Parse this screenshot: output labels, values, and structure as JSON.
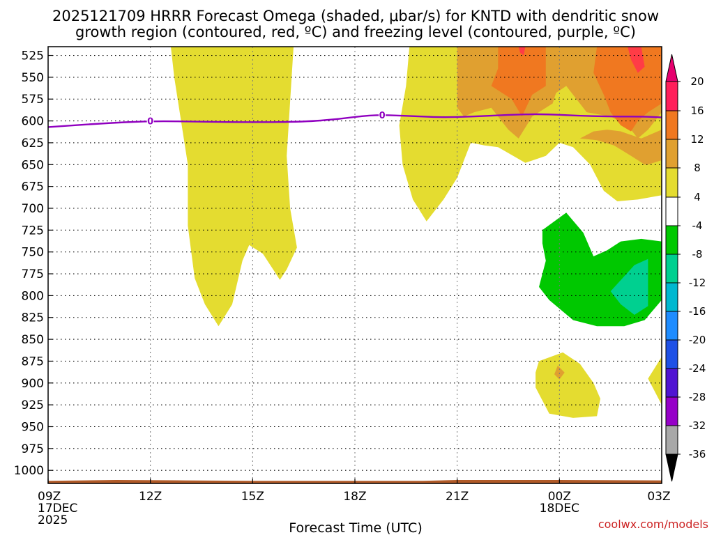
{
  "chart_data": {
    "type": "heatmap",
    "title_line1": "2025121709 HRRR Forecast Omega (shaded, μbar/s) for KNTD with dendritic snow",
    "title_line2": "growth region (contoured, red, ºC) and freezing level (contoured, purple, ºC)",
    "xlabel": "Forecast Time (UTC)",
    "credit": "coolwx.com/models",
    "x_ticks": [
      {
        "hour": 0,
        "lines": [
          "09Z",
          "17DEC",
          "2025"
        ]
      },
      {
        "hour": 3,
        "lines": [
          "12Z"
        ]
      },
      {
        "hour": 6,
        "lines": [
          "15Z"
        ]
      },
      {
        "hour": 9,
        "lines": [
          "18Z"
        ]
      },
      {
        "hour": 12,
        "lines": [
          "21Z"
        ]
      },
      {
        "hour": 15,
        "lines": [
          "00Z",
          "18DEC"
        ]
      },
      {
        "hour": 18,
        "lines": [
          "03Z"
        ]
      }
    ],
    "xlim_hours": [
      0,
      18
    ],
    "y_ticks": [
      "525",
      "550",
      "575",
      "600",
      "625",
      "650",
      "675",
      "700",
      "725",
      "750",
      "775",
      "800",
      "825",
      "850",
      "875",
      "900",
      "925",
      "950",
      "975",
      "1000"
    ],
    "ylim_hPa": [
      515,
      1015
    ],
    "colorbar": {
      "labels": [
        "20",
        "16",
        "12",
        "8",
        "4",
        "-4",
        "-8",
        "-12",
        "-16",
        "-20",
        "-24",
        "-28",
        "-32",
        "-36"
      ],
      "colors_top_to_bottom": [
        "#ff1f5a",
        "#f07820",
        "#e0a030",
        "#e4dc30",
        "#ffffff",
        "#00c800",
        "#00d090",
        "#00b8d0",
        "#1e8cff",
        "#1e50e6",
        "#5014d2",
        "#9600c8",
        "#a8a8a8"
      ],
      "top_arrow_color": "#e6006e",
      "bottom_arrow_color": "#000000"
    },
    "colors": {
      "pos4": "#e4dc30",
      "pos8": "#e0a030",
      "pos12": "#f07820",
      "pos16": "#ff3c46",
      "neg4": "#00c800",
      "neg8": "#00d090",
      "freezing_line": "#9000c0",
      "terrain": "#b05a28"
    },
    "freezing_level": {
      "contour_label": "0",
      "label_hours": [
        3.0,
        9.8
      ],
      "points": [
        [
          0.0,
          607
        ],
        [
          1.5,
          603
        ],
        [
          3.0,
          600
        ],
        [
          4.5,
          601
        ],
        [
          6.0,
          601.5
        ],
        [
          7.5,
          601
        ],
        [
          8.5,
          598
        ],
        [
          9.5,
          593
        ],
        [
          10.5,
          594
        ],
        [
          11.5,
          596
        ],
        [
          12.5,
          595
        ],
        [
          13.5,
          593
        ],
        [
          14.5,
          592
        ],
        [
          15.5,
          594
        ],
        [
          16.5,
          595
        ],
        [
          17.5,
          595
        ],
        [
          18.0,
          596
        ]
      ]
    },
    "omega_regions": [
      {
        "level": "pos4",
        "points": [
          [
            3.6,
            515
          ],
          [
            7.2,
            515
          ],
          [
            7.0,
            640
          ],
          [
            7.1,
            700
          ],
          [
            7.3,
            745
          ],
          [
            7.0,
            770
          ],
          [
            6.8,
            782
          ],
          [
            6.6,
            770
          ],
          [
            6.3,
            752
          ],
          [
            5.9,
            742
          ],
          [
            5.7,
            760
          ],
          [
            5.4,
            810
          ],
          [
            5.0,
            835
          ],
          [
            4.6,
            810
          ],
          [
            4.3,
            780
          ],
          [
            4.1,
            720
          ],
          [
            4.1,
            650
          ],
          [
            3.7,
            550
          ]
        ]
      },
      {
        "level": "pos4",
        "points": [
          [
            10.6,
            515
          ],
          [
            18.0,
            515
          ],
          [
            18.0,
            685
          ],
          [
            17.3,
            690
          ],
          [
            16.7,
            692
          ],
          [
            16.3,
            680
          ],
          [
            15.9,
            650
          ],
          [
            15.4,
            630
          ],
          [
            15.0,
            625
          ],
          [
            14.6,
            640
          ],
          [
            14.0,
            648
          ],
          [
            13.2,
            630
          ],
          [
            12.8,
            628
          ],
          [
            12.4,
            625
          ],
          [
            12.0,
            665
          ],
          [
            11.6,
            690
          ],
          [
            11.1,
            715
          ],
          [
            10.7,
            690
          ],
          [
            10.4,
            650
          ],
          [
            10.3,
            605
          ],
          [
            10.5,
            560
          ]
        ]
      },
      {
        "level": "pos8",
        "points": [
          [
            12.0,
            515
          ],
          [
            18.0,
            515
          ],
          [
            18.0,
            590
          ],
          [
            17.6,
            610
          ],
          [
            17.3,
            620
          ],
          [
            17.0,
            605
          ],
          [
            16.5,
            595
          ],
          [
            15.8,
            590
          ],
          [
            15.4,
            570
          ],
          [
            15.2,
            560
          ],
          [
            14.9,
            568
          ],
          [
            14.8,
            580
          ],
          [
            14.2,
            595
          ],
          [
            13.8,
            620
          ],
          [
            13.5,
            610
          ],
          [
            13.0,
            585
          ],
          [
            12.5,
            590
          ],
          [
            12.2,
            595
          ],
          [
            12.0,
            585
          ]
        ]
      },
      {
        "level": "pos8",
        "points": [
          [
            15.6,
            620
          ],
          [
            16.1,
            622
          ],
          [
            16.6,
            628
          ],
          [
            17.1,
            640
          ],
          [
            17.5,
            650
          ],
          [
            17.6,
            650
          ],
          [
            18.0,
            645
          ],
          [
            18.0,
            610
          ],
          [
            17.4,
            620
          ],
          [
            16.8,
            612
          ],
          [
            16.4,
            610
          ],
          [
            16.0,
            612
          ]
        ]
      },
      {
        "level": "pos12",
        "points": [
          [
            13.2,
            515
          ],
          [
            14.6,
            515
          ],
          [
            14.6,
            560
          ],
          [
            14.2,
            570
          ],
          [
            13.9,
            595
          ],
          [
            13.6,
            575
          ],
          [
            13.0,
            560
          ],
          [
            13.2,
            540
          ]
        ]
      },
      {
        "level": "pos12",
        "points": [
          [
            16.1,
            515
          ],
          [
            18.0,
            515
          ],
          [
            18.0,
            580
          ],
          [
            17.6,
            590
          ],
          [
            17.3,
            600
          ],
          [
            17.1,
            612
          ],
          [
            16.8,
            605
          ],
          [
            16.5,
            590
          ],
          [
            16.3,
            570
          ],
          [
            16.0,
            545
          ]
        ]
      },
      {
        "level": "pos16",
        "points": [
          [
            13.8,
            515
          ],
          [
            14.0,
            515
          ],
          [
            13.95,
            525
          ],
          [
            13.85,
            522
          ]
        ]
      },
      {
        "level": "pos16",
        "points": [
          [
            17.0,
            515
          ],
          [
            17.4,
            515
          ],
          [
            17.5,
            538
          ],
          [
            17.3,
            545
          ],
          [
            17.1,
            530
          ]
        ]
      },
      {
        "level": "pos4",
        "points": [
          [
            14.4,
            875
          ],
          [
            15.1,
            865
          ],
          [
            15.6,
            878
          ],
          [
            16.0,
            900
          ],
          [
            16.2,
            918
          ],
          [
            16.1,
            938
          ],
          [
            15.4,
            940
          ],
          [
            14.7,
            935
          ],
          [
            14.3,
            905
          ],
          [
            14.3,
            888
          ]
        ]
      },
      {
        "level": "pos8",
        "points": [
          [
            14.95,
            880
          ],
          [
            15.15,
            888
          ],
          [
            15.0,
            896
          ],
          [
            14.85,
            890
          ]
        ]
      },
      {
        "level": "pos4",
        "points": [
          [
            17.6,
            895
          ],
          [
            18.0,
            870
          ],
          [
            18.0,
            925
          ],
          [
            17.8,
            910
          ]
        ]
      },
      {
        "level": "neg4",
        "points": [
          [
            14.5,
            725
          ],
          [
            15.2,
            705
          ],
          [
            15.7,
            728
          ],
          [
            16.0,
            755
          ],
          [
            16.4,
            748
          ],
          [
            16.8,
            738
          ],
          [
            17.4,
            735
          ],
          [
            18.0,
            738
          ],
          [
            18.0,
            805
          ],
          [
            17.5,
            828
          ],
          [
            16.9,
            835
          ],
          [
            16.1,
            835
          ],
          [
            15.4,
            828
          ],
          [
            14.7,
            805
          ],
          [
            14.4,
            790
          ],
          [
            14.6,
            760
          ],
          [
            14.5,
            740
          ]
        ]
      },
      {
        "level": "neg8",
        "points": [
          [
            16.5,
            795
          ],
          [
            17.2,
            765
          ],
          [
            17.6,
            758
          ],
          [
            17.6,
            812
          ],
          [
            17.2,
            822
          ],
          [
            16.8,
            810
          ]
        ]
      }
    ]
  }
}
